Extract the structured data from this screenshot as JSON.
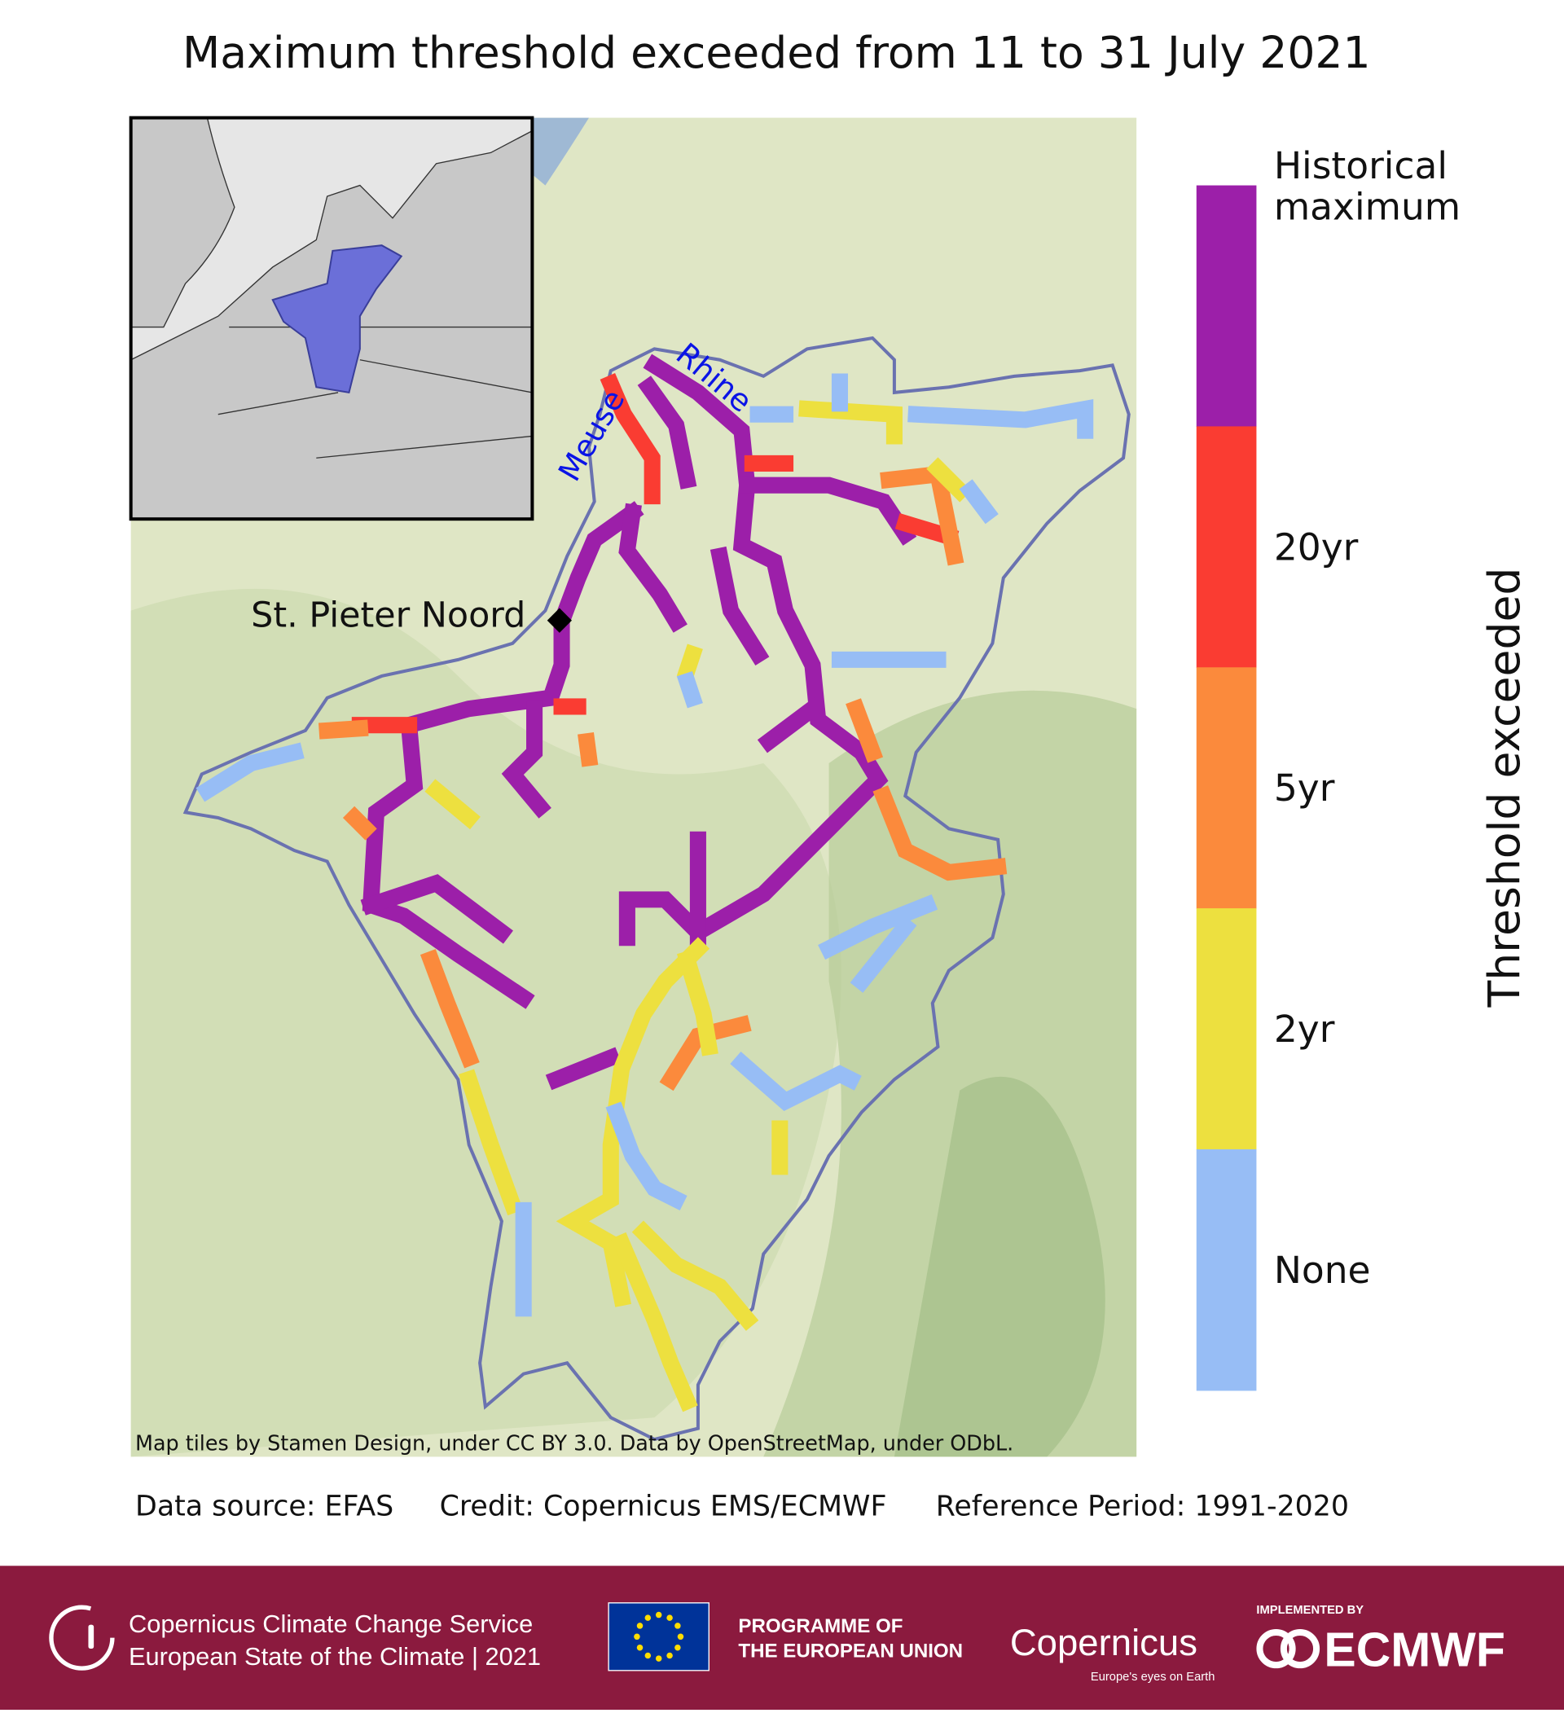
{
  "title": "Maximum threshold exceeded from 11 to 31 July 2021",
  "map": {
    "rivers": [
      "Rhine",
      "Meuse"
    ],
    "station": "St. Pieter Noord",
    "attribution": "Map tiles by Stamen Design, under CC BY 3.0. Data by OpenStreetMap, under ODbL."
  },
  "colorbar": {
    "label": "Threshold exceeded",
    "items": [
      {
        "lines": [
          "Historical",
          "maximum"
        ],
        "color": "#9c1fa9"
      },
      {
        "lines": [
          "20yr"
        ],
        "color": "#fa3c32"
      },
      {
        "lines": [
          "5yr"
        ],
        "color": "#fb8a3c"
      },
      {
        "lines": [
          "2yr"
        ],
        "color": "#ede03f"
      },
      {
        "lines": [
          "None"
        ],
        "color": "#97bdf5"
      }
    ]
  },
  "notes": [
    "Data source: EFAS",
    "Credit: Copernicus EMS/ECMWF",
    "Reference Period: 1991-2020"
  ],
  "footer": {
    "service": "Copernicus Climate Change Service",
    "report": "European State of the Climate | 2021",
    "programme": [
      "PROGRAMME OF",
      "THE EUROPEAN UNION"
    ],
    "copernicus": "Copernicus",
    "copernicus_tagline": "Europe's eyes on Earth",
    "implemented_by": "IMPLEMENTED BY",
    "ecmwf": "ECMWF"
  }
}
